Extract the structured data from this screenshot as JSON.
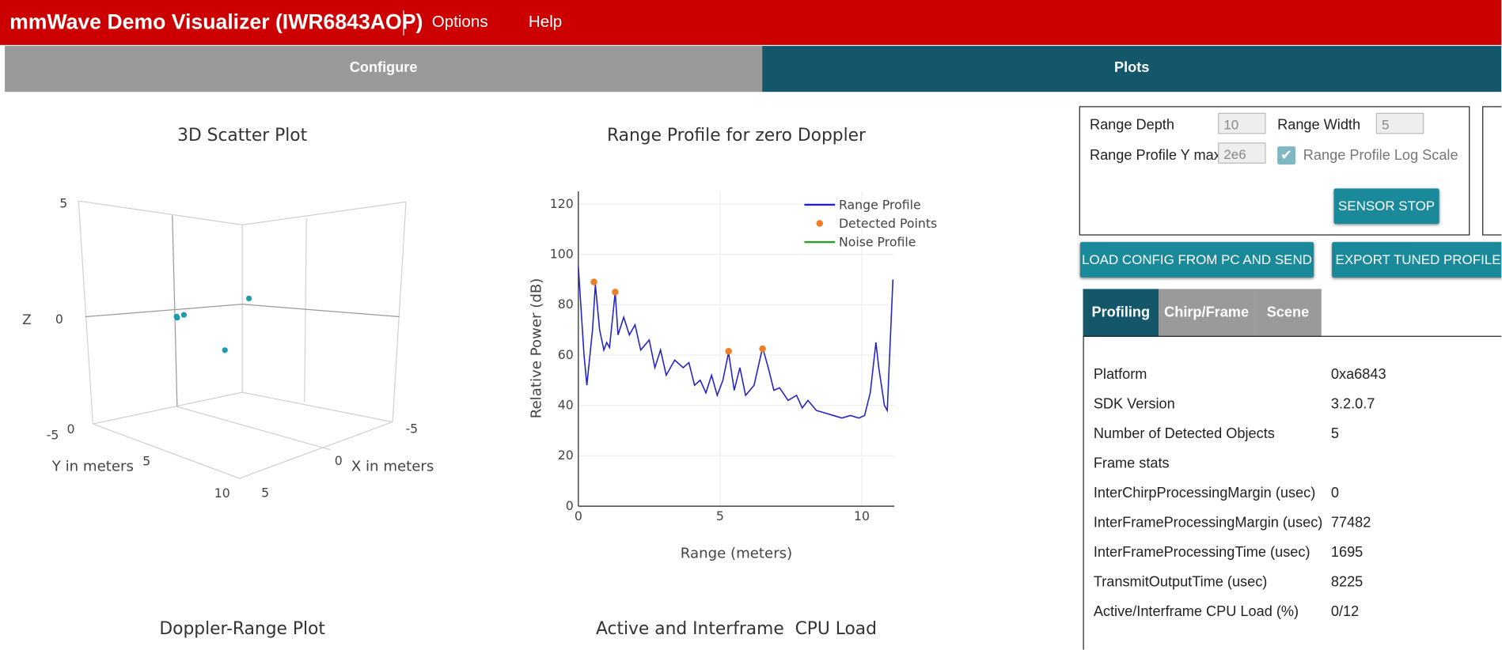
{
  "header": {
    "title": "mmWave Demo Visualizer (IWR6843AOP)",
    "menu": [
      "Options",
      "Help"
    ]
  },
  "tabs": [
    "Configure",
    "Plots"
  ],
  "settings": {
    "range_depth_label": "Range Depth",
    "range_depth": "10",
    "range_width_label": "Range Width",
    "range_width": "5",
    "ymax_label": "Range Profile Y max",
    "ymax": "2e6",
    "log_scale_label": "Range Profile Log Scale",
    "log_scale": true
  },
  "buttons": {
    "sensor": "SENSOR STOP",
    "load": "LOAD CONFIG FROM PC AND SEND",
    "export": "EXPORT TUNED PROFILE"
  },
  "info_tabs": [
    "Profiling",
    "Chirp/Frame",
    "Scene"
  ],
  "info_rows": [
    [
      "Platform",
      "0xa6843"
    ],
    [
      "SDK Version",
      "3.2.0.7"
    ],
    [
      "Number of Detected Objects",
      "5"
    ],
    [
      "Frame stats",
      null
    ],
    [
      "InterChirpProcessingMargin (usec)",
      "0"
    ],
    [
      "InterFrameProcessingMargin (usec)",
      "77482"
    ],
    [
      "InterFrameProcessingTime (usec)",
      "1695"
    ],
    [
      "TransmitOutputTime (usec)",
      "8225"
    ],
    [
      "Active/Interframe CPU Load (%)",
      "0/12"
    ]
  ],
  "plot_titles": [
    "Doppler-Range Plot",
    "Active and Interframe  CPU Load"
  ],
  "chart_data": [
    {
      "type": "scatter3d",
      "title": "3D Scatter Plot",
      "xlabel": "X in meters",
      "ylabel": "Y in meters",
      "zlabel": "Z",
      "x": [
        1.96,
        1.5,
        -2.94,
        -1.3,
        2.0
      ],
      "y": [
        5,
        5,
        5,
        5,
        5
      ],
      "z": [
        0.04,
        0.04,
        -0.46,
        -2.17,
        0.1
      ],
      "color": "#1f9bb0",
      "xticks": [
        -5,
        0,
        5
      ],
      "yticks": [
        0,
        5,
        10
      ],
      "zticks": [
        -5,
        0,
        5
      ]
    },
    {
      "type": "line",
      "title": "Range Profile for zero Doppler",
      "xlabel": "Range (meters)",
      "ylabel": "Relative Power (dB)",
      "xlim": [
        0,
        11.15
      ],
      "ylim": [
        0,
        125
      ],
      "xticks": [
        0,
        5,
        10
      ],
      "yticks": [
        0,
        20,
        40,
        60,
        80,
        100,
        120
      ],
      "grid": true,
      "legend": "top-right",
      "series": [
        {
          "name": "Range Profile",
          "color": "#2323c8",
          "mode": "lines",
          "x": [
            0,
            0.2,
            0.3,
            0.5,
            0.6,
            0.75,
            0.9,
            1.0,
            1.1,
            1.3,
            1.4,
            1.6,
            1.8,
            2.0,
            2.2,
            2.5,
            2.7,
            2.9,
            3.1,
            3.4,
            3.7,
            3.9,
            4.1,
            4.3,
            4.5,
            4.7,
            4.9,
            5.1,
            5.3,
            5.5,
            5.7,
            5.9,
            6.2,
            6.5,
            6.7,
            6.9,
            7.1,
            7.4,
            7.7,
            7.9,
            8.1,
            8.4,
            8.7,
            9.0,
            9.3,
            9.6,
            9.9,
            10.1,
            10.3,
            10.5,
            10.6,
            10.8,
            10.9,
            11.1
          ],
          "values": [
            95,
            60,
            48,
            70,
            88,
            70,
            62,
            65,
            63,
            85,
            68,
            75,
            68,
            72,
            62,
            66,
            55,
            62,
            52,
            58,
            55,
            57,
            48,
            50,
            45,
            52,
            44,
            50,
            61,
            46,
            55,
            44,
            48,
            63,
            55,
            46,
            47,
            42,
            44,
            39,
            42,
            38,
            37,
            36,
            35,
            36,
            35,
            36,
            45,
            65,
            55,
            40,
            38,
            90
          ]
        },
        {
          "name": "Detected Points",
          "color": "#f07e26",
          "mode": "markers",
          "x": [
            0.55,
            1.3,
            5.3,
            6.5
          ],
          "values": [
            89,
            85,
            61.5,
            62.5
          ]
        },
        {
          "name": "Noise Profile",
          "color": "#2ca02c",
          "mode": "lines",
          "x": [],
          "values": []
        }
      ]
    }
  ]
}
